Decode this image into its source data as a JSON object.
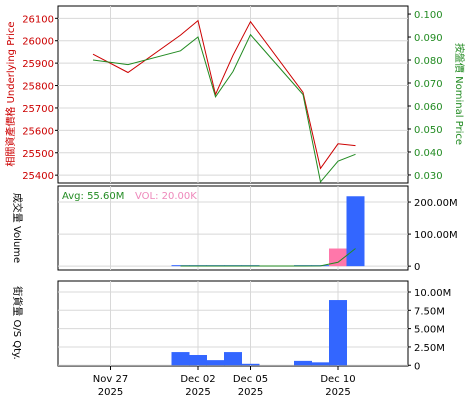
{
  "chart_data": [
    {
      "type": "line",
      "ylabel_left": "相關資產價格 Underlying Price",
      "ylabel_right": "按盤價 Nominal Price",
      "left_ticks": [
        "25400",
        "25500",
        "25600",
        "25700",
        "25800",
        "25900",
        "26000",
        "26100"
      ],
      "right_ticks": [
        "0.030",
        "0.040",
        "0.050",
        "0.060",
        "0.070",
        "0.080",
        "0.090",
        "0.100"
      ],
      "left_ylim": [
        25365,
        26155
      ],
      "right_ylim": [
        0.0265,
        0.1035
      ],
      "grid": true,
      "x": [
        "2025-11-26",
        "2025-11-28",
        "2025-12-01",
        "2025-12-02",
        "2025-12-03",
        "2025-12-04",
        "2025-12-05",
        "2025-12-08",
        "2025-12-09",
        "2025-12-10",
        "2025-12-11"
      ],
      "series": [
        {
          "axis": "left",
          "color": "#cc0000",
          "values": [
            25940,
            25858,
            26025,
            26090,
            25760,
            25935,
            26085,
            25770,
            25430,
            25540,
            25532
          ]
        },
        {
          "axis": "right",
          "color": "#228b22",
          "values": [
            0.08,
            0.078,
            0.084,
            0.09,
            0.064,
            0.075,
            0.091,
            0.065,
            0.027,
            0.036,
            0.039
          ]
        }
      ]
    },
    {
      "type": "bar",
      "ylabel": "成交量 Volume",
      "ticks": [
        "0",
        "100.00M",
        "200.00M"
      ],
      "ylim": [
        -12,
        250
      ],
      "grid": true,
      "legend": [
        {
          "text": "Avg: 55.60M",
          "color": "#228b22"
        },
        {
          "text": "VOL: 20.00K",
          "color": "#ee88bb"
        }
      ],
      "x": [
        "2025-11-26",
        "2025-11-28",
        "2025-12-01",
        "2025-12-02",
        "2025-12-03",
        "2025-12-04",
        "2025-12-05",
        "2025-12-08",
        "2025-12-09",
        "2025-12-10",
        "2025-12-11"
      ],
      "values": [
        0,
        0,
        0.5,
        0.5,
        0.1,
        0.1,
        0.2,
        0.1,
        0.5,
        55,
        218
      ],
      "colors": [
        "#3366ff",
        "#3366ff",
        "#3366ff",
        "#3366ff",
        "#3366ff",
        "#3366ff",
        "#3366ff",
        "#3366ff",
        "#3366ff",
        "#ff77aa",
        "#3366ff"
      ],
      "avg_line": {
        "color": "#228b22",
        "values": [
          null,
          null,
          0.5,
          0.5,
          0.5,
          0.5,
          0.5,
          0.5,
          0.8,
          12,
          55
        ]
      }
    },
    {
      "type": "bar",
      "ylabel": "街貨量 O/S Qty.",
      "ticks": [
        "0",
        "2.50M",
        "5.00M",
        "7.50M",
        "10.00M"
      ],
      "ylim": [
        -0.1,
        11.5
      ],
      "grid": true,
      "x": [
        "2025-11-26",
        "2025-11-28",
        "2025-12-01",
        "2025-12-02",
        "2025-12-03",
        "2025-12-04",
        "2025-12-05",
        "2025-12-08",
        "2025-12-09",
        "2025-12-10",
        "2025-12-11"
      ],
      "values": [
        0,
        0,
        1.8,
        1.4,
        0.7,
        1.8,
        0.2,
        0.6,
        0.4,
        8.9,
        0
      ],
      "color": "#3366ff"
    }
  ],
  "x_axis": {
    "tick_labels": [
      {
        "date": "2025-11-27",
        "line1": "Nov 27",
        "line2": "2025"
      },
      {
        "date": "2025-12-02",
        "line1": "Dec 02",
        "line2": "2025"
      },
      {
        "date": "2025-12-05",
        "line1": "Dec 05",
        "line2": "2025"
      },
      {
        "date": "2025-12-10",
        "line1": "Dec 10",
        "line2": "2025"
      }
    ]
  }
}
